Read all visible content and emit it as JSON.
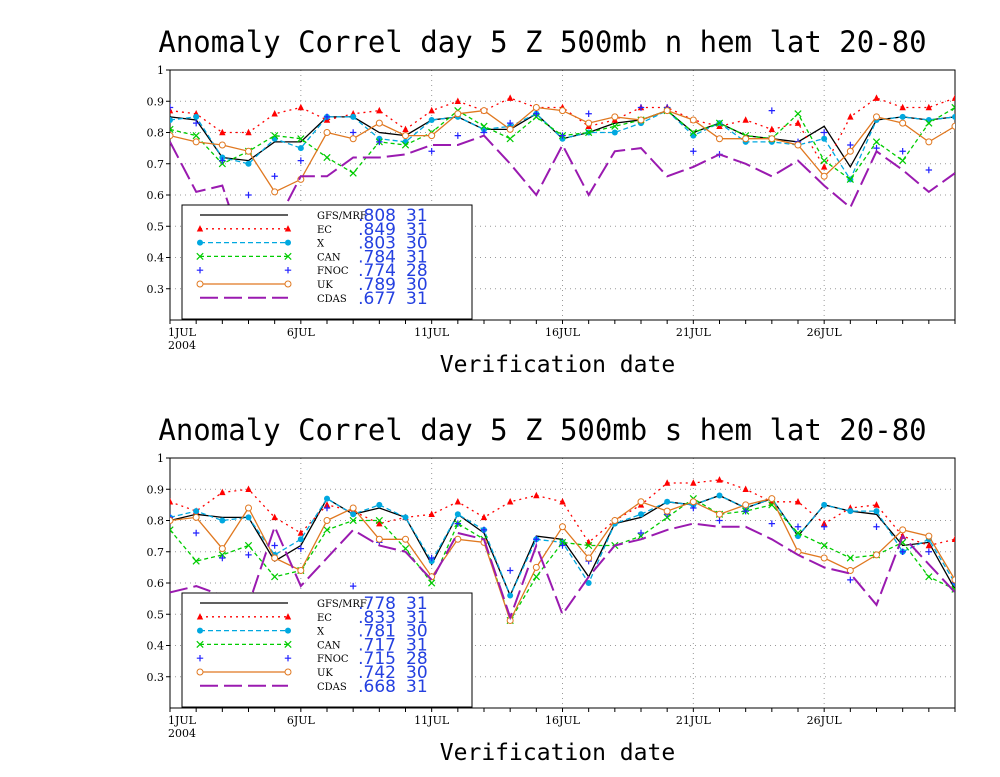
{
  "chart_data": [
    {
      "type": "line",
      "title": "Anomaly Correl  day 5  Z 500mb  n hem  lat 20-80",
      "xlabel": "Verification date",
      "x_tick_labels": [
        {
          "day": 1,
          "label": "1JUL",
          "sub": "2004"
        },
        {
          "day": 6,
          "label": "6JUL"
        },
        {
          "day": 11,
          "label": "11JUL"
        },
        {
          "day": 16,
          "label": "16JUL"
        },
        {
          "day": 21,
          "label": "21JUL"
        },
        {
          "day": 26,
          "label": "26JUL"
        }
      ],
      "x_range": [
        1,
        31
      ],
      "ylim": [
        0.2,
        1.0
      ],
      "y_ticks": [
        0.3,
        0.4,
        0.5,
        0.6,
        0.7,
        0.8,
        0.9,
        1
      ],
      "grid": true,
      "legend_position": "bottom-left",
      "x": [
        1,
        2,
        3,
        4,
        5,
        6,
        7,
        8,
        9,
        10,
        11,
        12,
        13,
        14,
        15,
        16,
        17,
        18,
        19,
        20,
        21,
        22,
        23,
        24,
        25,
        26,
        27,
        28,
        29,
        30,
        31
      ],
      "series": [
        {
          "name": "GFS/MRF",
          "stat": ".808",
          "n": "31",
          "color": "#000000",
          "dash": "",
          "marker": "none",
          "values": [
            0.85,
            0.84,
            0.72,
            0.71,
            0.77,
            0.77,
            0.85,
            0.85,
            0.8,
            0.79,
            0.84,
            0.85,
            0.81,
            0.81,
            0.86,
            0.78,
            0.8,
            0.83,
            0.84,
            0.87,
            0.8,
            0.83,
            0.79,
            0.78,
            0.77,
            0.82,
            0.69,
            0.84,
            0.85,
            0.84,
            0.85
          ]
        },
        {
          "name": "EC",
          "stat": ".849",
          "n": "31",
          "color": "#ff0000",
          "dash": "2 4",
          "marker": "triangle",
          "values": [
            0.87,
            0.86,
            0.8,
            0.8,
            0.86,
            0.88,
            0.84,
            0.86,
            0.87,
            0.81,
            0.87,
            0.9,
            0.87,
            0.91,
            0.88,
            0.88,
            0.82,
            0.84,
            0.88,
            0.88,
            0.84,
            0.82,
            0.84,
            0.81,
            0.83,
            0.69,
            0.85,
            0.91,
            0.88,
            0.88,
            0.91
          ]
        },
        {
          "name": "X",
          "stat": ".803",
          "n": "30",
          "color": "#00a8e0",
          "dash": "5 3",
          "marker": "circle",
          "values": [
            0.84,
            0.85,
            0.72,
            0.7,
            0.78,
            0.75,
            0.85,
            0.85,
            0.78,
            0.77,
            0.84,
            0.85,
            0.81,
            0.82,
            0.86,
            0.78,
            0.8,
            0.8,
            0.83,
            0.87,
            0.79,
            0.83,
            0.77,
            0.77,
            0.76,
            0.78,
            0.65,
            0.84,
            0.85,
            0.84,
            0.85
          ]
        },
        {
          "name": "CAN",
          "stat": ".784",
          "n": "31",
          "color": "#00cc00",
          "dash": "4 3",
          "marker": "x",
          "values": [
            0.81,
            0.79,
            0.7,
            0.74,
            0.79,
            0.78,
            0.72,
            0.67,
            0.77,
            0.76,
            0.8,
            0.87,
            0.82,
            0.78,
            0.85,
            0.79,
            0.8,
            0.82,
            0.84,
            0.87,
            0.8,
            0.83,
            0.79,
            0.78,
            0.86,
            0.71,
            0.65,
            0.77,
            0.71,
            0.83,
            0.88
          ]
        },
        {
          "name": "FNOC",
          "stat": ".774",
          "n": "28",
          "color": "#2222ff",
          "dash": "",
          "marker": "plus",
          "values": [
            0.88,
            0.83,
            0.71,
            0.6,
            0.66,
            0.71,
            0.85,
            0.8,
            0.77,
            0.79,
            0.74,
            0.79,
            0.8,
            0.83,
            0.86,
            0.79,
            0.86,
            0.85,
            0.88,
            0.88,
            0.74,
            0.73,
            0.78,
            0.87,
            0.77,
            0.8,
            0.76,
            0.75,
            0.74,
            0.68,
            0.82
          ]
        },
        {
          "name": "UK",
          "stat": ".789",
          "n": "30",
          "color": "#e07820",
          "dash": "",
          "marker": "ocircle",
          "values": [
            0.79,
            0.77,
            0.76,
            0.74,
            0.61,
            0.65,
            0.8,
            0.78,
            0.83,
            0.79,
            0.79,
            0.86,
            0.87,
            0.81,
            0.88,
            0.87,
            0.83,
            0.85,
            0.84,
            0.87,
            0.84,
            0.78,
            0.78,
            0.78,
            0.76,
            0.66,
            0.74,
            0.85,
            0.83,
            0.77,
            0.82
          ]
        },
        {
          "name": "CDAS",
          "stat": ".677",
          "n": "31",
          "color": "#9a1ab0",
          "dash": "18 6",
          "marker": "none",
          "values": [
            0.77,
            0.61,
            0.63,
            0.38,
            0.5,
            0.66,
            0.66,
            0.72,
            0.72,
            0.73,
            0.76,
            0.76,
            0.79,
            0.7,
            0.6,
            0.76,
            0.6,
            0.74,
            0.75,
            0.66,
            0.69,
            0.73,
            0.7,
            0.66,
            0.71,
            0.63,
            0.56,
            0.74,
            0.68,
            0.61,
            0.67
          ]
        }
      ]
    },
    {
      "type": "line",
      "title": "Anomaly Correl  day 5  Z 500mb  s hem  lat 20-80",
      "xlabel": "Verification date",
      "x_tick_labels": [
        {
          "day": 1,
          "label": "1JUL",
          "sub": "2004"
        },
        {
          "day": 6,
          "label": "6JUL"
        },
        {
          "day": 11,
          "label": "11JUL"
        },
        {
          "day": 16,
          "label": "16JUL"
        },
        {
          "day": 21,
          "label": "21JUL"
        },
        {
          "day": 26,
          "label": "26JUL"
        }
      ],
      "x_range": [
        1,
        31
      ],
      "ylim": [
        0.2,
        1.0
      ],
      "y_ticks": [
        0.3,
        0.4,
        0.5,
        0.6,
        0.7,
        0.8,
        0.9,
        1
      ],
      "grid": true,
      "legend_position": "bottom-left",
      "x": [
        1,
        2,
        3,
        4,
        5,
        6,
        7,
        8,
        9,
        10,
        11,
        12,
        13,
        14,
        15,
        16,
        17,
        18,
        19,
        20,
        21,
        22,
        23,
        24,
        25,
        26,
        27,
        28,
        29,
        30,
        31
      ],
      "series": [
        {
          "name": "GFS/MRF",
          "stat": ".778",
          "n": "31",
          "color": "#000000",
          "dash": "",
          "marker": "none",
          "values": [
            0.8,
            0.82,
            0.81,
            0.81,
            0.67,
            0.72,
            0.87,
            0.82,
            0.84,
            0.81,
            0.66,
            0.82,
            0.76,
            0.56,
            0.75,
            0.74,
            0.62,
            0.79,
            0.81,
            0.86,
            0.85,
            0.88,
            0.84,
            0.87,
            0.75,
            0.85,
            0.83,
            0.82,
            0.72,
            0.73,
            0.58
          ]
        },
        {
          "name": "EC",
          "stat": ".833",
          "n": "31",
          "color": "#ff0000",
          "dash": "2 4",
          "marker": "triangle",
          "values": [
            0.86,
            0.83,
            0.89,
            0.9,
            0.81,
            0.76,
            0.85,
            0.83,
            0.79,
            0.81,
            0.82,
            0.86,
            0.81,
            0.86,
            0.88,
            0.86,
            0.73,
            0.8,
            0.85,
            0.92,
            0.92,
            0.93,
            0.9,
            0.86,
            0.86,
            0.79,
            0.84,
            0.85,
            0.75,
            0.72,
            0.74
          ]
        },
        {
          "name": "X",
          "stat": ".781",
          "n": "30",
          "color": "#00a8e0",
          "dash": "5 3",
          "marker": "circle",
          "values": [
            0.81,
            0.83,
            0.8,
            0.81,
            0.69,
            0.74,
            0.87,
            0.82,
            0.85,
            0.81,
            0.67,
            0.82,
            0.77,
            0.56,
            0.74,
            0.73,
            0.6,
            0.79,
            0.82,
            0.86,
            0.85,
            0.88,
            0.84,
            0.87,
            0.75,
            0.85,
            0.83,
            0.83,
            0.7,
            0.74,
            0.6
          ]
        },
        {
          "name": "CAN",
          "stat": ".717",
          "n": "31",
          "color": "#00cc00",
          "dash": "4 3",
          "marker": "x",
          "values": [
            0.77,
            0.67,
            0.69,
            0.72,
            0.62,
            0.64,
            0.77,
            0.8,
            0.8,
            0.71,
            0.6,
            0.79,
            0.74,
            0.48,
            0.62,
            0.73,
            0.72,
            0.72,
            0.75,
            0.81,
            0.87,
            0.82,
            0.83,
            0.85,
            0.76,
            0.72,
            0.68,
            0.69,
            0.73,
            0.62,
            0.58
          ]
        },
        {
          "name": "FNOC",
          "stat": ".715",
          "n": "28",
          "color": "#2222ff",
          "dash": "",
          "marker": "plus",
          "values": [
            0.81,
            0.76,
            0.68,
            0.69,
            0.72,
            0.71,
            0.84,
            0.59,
            0.73,
            0.74,
            0.68,
            0.79,
            0.77,
            0.64,
            0.74,
            0.72,
            0.67,
            0.8,
            0.76,
            0.82,
            0.84,
            0.8,
            0.83,
            0.79,
            0.78,
            0.78,
            0.61,
            0.78,
            0.7,
            0.7,
            0.6
          ]
        },
        {
          "name": "UK",
          "stat": ".742",
          "n": "30",
          "color": "#e07820",
          "dash": "",
          "marker": "ocircle",
          "values": [
            0.8,
            0.81,
            0.71,
            0.84,
            0.68,
            0.64,
            0.8,
            0.84,
            0.74,
            0.74,
            0.62,
            0.74,
            0.73,
            0.48,
            0.65,
            0.78,
            0.68,
            0.8,
            0.86,
            0.83,
            0.86,
            0.82,
            0.85,
            0.87,
            0.7,
            0.68,
            0.64,
            0.69,
            0.77,
            0.75,
            0.61
          ]
        },
        {
          "name": "CDAS",
          "stat": ".668",
          "n": "31",
          "color": "#9a1ab0",
          "dash": "18 6",
          "marker": "none",
          "values": [
            0.57,
            0.59,
            0.56,
            0.53,
            0.78,
            0.59,
            0.68,
            0.77,
            0.72,
            0.7,
            0.61,
            0.76,
            0.74,
            0.49,
            0.72,
            0.5,
            0.62,
            0.72,
            0.74,
            0.77,
            0.79,
            0.78,
            0.78,
            0.74,
            0.69,
            0.65,
            0.63,
            0.53,
            0.75,
            0.66,
            0.57
          ]
        }
      ]
    }
  ]
}
